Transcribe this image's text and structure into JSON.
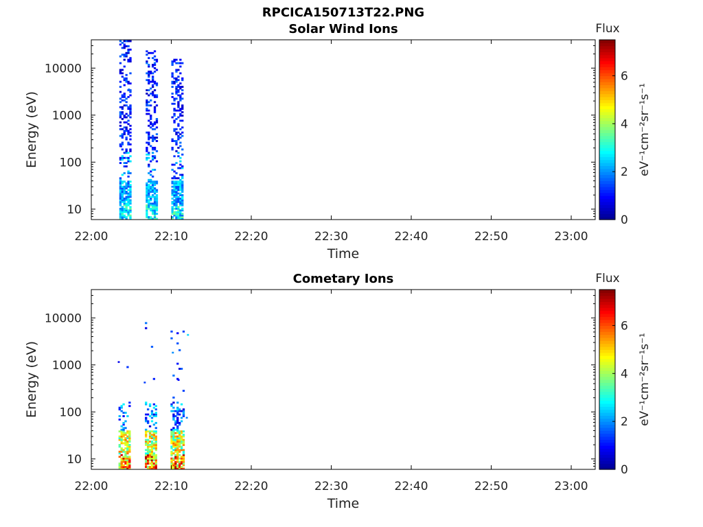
{
  "figure": {
    "title": "RPCICA150713T22.PNG"
  },
  "colors": {
    "colormap": [
      "#00008f",
      "#0000ff",
      "#0080ff",
      "#00ffff",
      "#80ff80",
      "#ffff00",
      "#ff8000",
      "#ff0000",
      "#800000"
    ],
    "frame": "#000000"
  },
  "chart_data": [
    {
      "type": "heatmap",
      "title": "Solar Wind Ions",
      "xlabel": "Time",
      "ylabel": "Energy (eV)",
      "x_ticks": [
        "22:00",
        "22:10",
        "22:20",
        "22:30",
        "22:40",
        "22:50",
        "23:00"
      ],
      "x_range_minutes": [
        0,
        63
      ],
      "y_scale": "log",
      "y_ticks": [
        10,
        100,
        1000,
        10000
      ],
      "y_labels": [
        "10",
        "100",
        "1000",
        "10000"
      ],
      "ylim": [
        6,
        40000
      ],
      "colorbar": {
        "label": "Flux",
        "unit": "eV⁻¹cm⁻²sr⁻¹s⁻¹",
        "range": [
          0,
          7.5
        ],
        "ticks": [
          0,
          2,
          4,
          6
        ]
      },
      "bursts": [
        {
          "start_min": 3.5,
          "end_min": 5.0,
          "max_energy": 38000
        },
        {
          "start_min": 6.8,
          "end_min": 8.3,
          "max_energy": 22000
        },
        {
          "start_min": 10.0,
          "end_min": 11.5,
          "max_energy": 15000
        }
      ],
      "low_energy_flux_level": 3.2,
      "seed": 17
    },
    {
      "type": "heatmap",
      "title": "Cometary Ions",
      "xlabel": "Time",
      "ylabel": "Energy (eV)",
      "x_ticks": [
        "22:00",
        "22:10",
        "22:20",
        "22:30",
        "22:40",
        "22:50",
        "23:00"
      ],
      "x_range_minutes": [
        0,
        63
      ],
      "y_scale": "log",
      "y_ticks": [
        10,
        100,
        1000,
        10000
      ],
      "y_labels": [
        "10",
        "100",
        "1000",
        "10000"
      ],
      "ylim": [
        6,
        40000
      ],
      "colorbar": {
        "label": "Flux",
        "unit": "eV⁻¹cm⁻²sr⁻¹s⁻¹",
        "range": [
          0,
          7.5
        ],
        "ticks": [
          0,
          2,
          4,
          6
        ]
      },
      "bursts": [
        {
          "start_min": 3.4,
          "end_min": 4.9,
          "max_energy": 10000
        },
        {
          "start_min": 6.7,
          "end_min": 8.2,
          "max_energy": 10000
        },
        {
          "start_min": 9.9,
          "end_min": 11.5,
          "max_energy": 10000
        }
      ],
      "low_energy_flux_level": 6.3,
      "seed": 42
    }
  ]
}
